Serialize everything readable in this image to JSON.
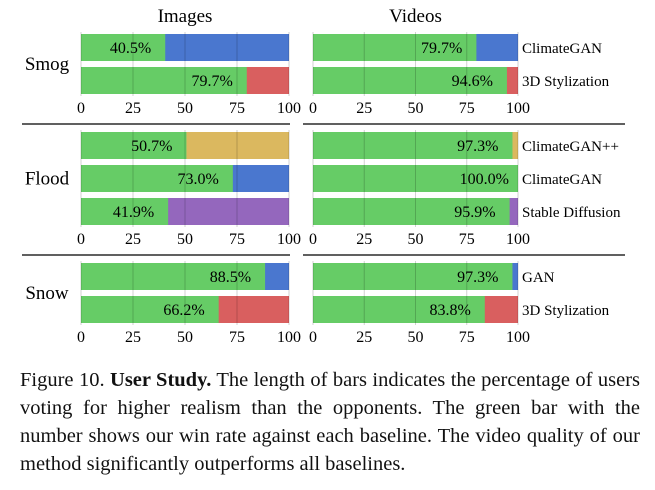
{
  "chart_data": {
    "type": "bar",
    "orientation": "horizontal-stacked",
    "panel_titles": [
      "Images",
      "Videos"
    ],
    "xlim": [
      0,
      100
    ],
    "xticks": [
      "0",
      "25",
      "50",
      "75",
      "100"
    ],
    "colors": {
      "ours": "#66cc66",
      "ClimateGAN": "#4a77cf",
      "3D Stylization": "#d95f5f",
      "ClimateGAN++": "#dbb85f",
      "Stable Diffusion": "#9467bd",
      "GAN": "#4a77cf"
    },
    "groups": [
      {
        "name": "Smog",
        "baselines": [
          "ClimateGAN",
          "3D Stylization"
        ],
        "images": [
          40.5,
          79.7
        ],
        "videos": [
          79.7,
          94.6
        ],
        "image_labels": [
          "40.5%",
          "79.7%"
        ],
        "video_labels": [
          "79.7%",
          "94.6%"
        ]
      },
      {
        "name": "Flood",
        "baselines": [
          "ClimateGAN++",
          "ClimateGAN",
          "Stable Diffusion"
        ],
        "images": [
          50.7,
          73.0,
          41.9
        ],
        "videos": [
          97.3,
          100.0,
          95.9
        ],
        "image_labels": [
          "50.7%",
          "73.0%",
          "41.9%"
        ],
        "video_labels": [
          "97.3%",
          "100.0%",
          "95.9%"
        ]
      },
      {
        "name": "Snow",
        "baselines": [
          "GAN",
          "3D Stylization"
        ],
        "images": [
          88.5,
          66.2
        ],
        "videos": [
          97.3,
          83.8
        ],
        "image_labels": [
          "88.5%",
          "66.2%"
        ],
        "video_labels": [
          "97.3%",
          "83.8%"
        ]
      }
    ]
  },
  "caption": {
    "prefix": "Figure 10.",
    "bold": "User Study.",
    "text": "The length of bars indicates the percentage of users voting for higher realism than the opponents. The green bar with the number shows our win rate against each baseline. The video quality of our method significantly outperforms all baselines."
  }
}
